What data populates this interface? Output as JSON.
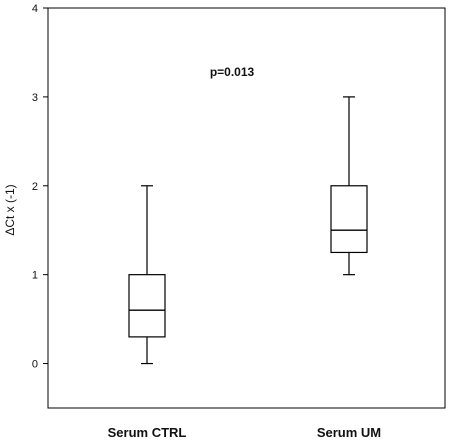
{
  "chart_data": {
    "type": "boxplot",
    "title": "",
    "xlabel": "",
    "ylabel": "ΔCt x (-1)",
    "ylim": [
      -0.5,
      4
    ],
    "yticks": [
      0,
      1,
      2,
      3,
      4
    ],
    "grid": false,
    "annotation": "p=0.013",
    "categories": [
      "Serum CTRL",
      "Serum UM"
    ],
    "boxes": [
      {
        "category": "Serum CTRL",
        "min": 0,
        "q1": 0.3,
        "median": 0.6,
        "q3": 1.0,
        "max": 2.0
      },
      {
        "category": "Serum UM",
        "min": 1.0,
        "q1": 1.25,
        "median": 1.5,
        "q3": 2.0,
        "max": 3.0
      }
    ]
  }
}
